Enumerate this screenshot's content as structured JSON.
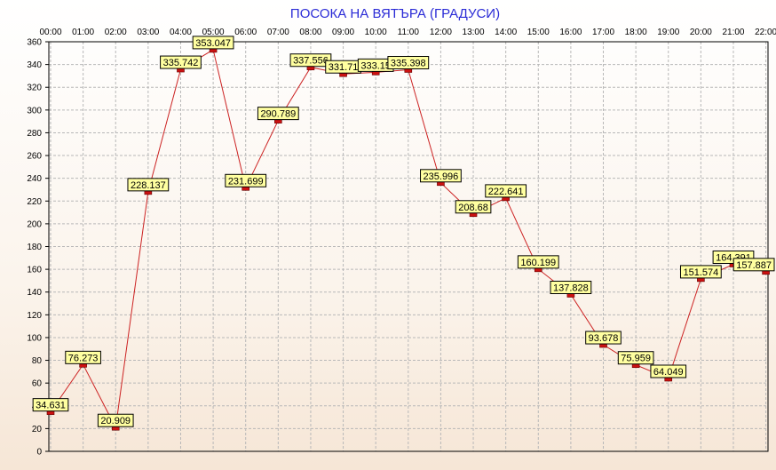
{
  "chart_data": {
    "type": "line",
    "title": "ПОСОКА НА ВЯТЪРА    (ГРАДУСИ)",
    "xlabel": "",
    "ylabel": "",
    "x": [
      "00:00",
      "01:00",
      "02:00",
      "03:00",
      "04:00",
      "05:00",
      "06:00",
      "07:00",
      "08:00",
      "09:00",
      "10:00",
      "11:00",
      "12:00",
      "13:00",
      "14:00",
      "15:00",
      "16:00",
      "17:00",
      "18:00",
      "19:00",
      "20:00",
      "21:00",
      "22:00"
    ],
    "y_ticks": [
      "0",
      "20",
      "40",
      "60",
      "80",
      "100",
      "120",
      "140",
      "160",
      "180",
      "200",
      "220",
      "240",
      "260",
      "280",
      "300",
      "320",
      "340",
      "360"
    ],
    "ylim": [
      0,
      360
    ],
    "grid": true,
    "series": [
      {
        "name": "",
        "values": [
          34.631,
          76.273,
          20.909,
          228.137,
          335.742,
          353.047,
          231.699,
          290.789,
          337.556,
          331.71,
          333.15,
          335.398,
          235.996,
          208.68,
          222.641,
          160.199,
          137.828,
          93.678,
          75.959,
          64.049,
          151.574,
          164.391,
          157.887
        ],
        "data_labels": [
          "34.631",
          "76.273",
          "20.909",
          "228.137",
          "335.742",
          "353.047",
          "231.699",
          "290.789",
          "337.556",
          "331.71",
          "333.15",
          "335.398",
          "235.996",
          "208.68",
          "222.641",
          "160.199",
          "137.828",
          "93.678",
          "75.959",
          "64.049",
          "151.574",
          "164.391",
          "157.887"
        ]
      }
    ],
    "colors": {
      "line": "#cc2222",
      "marker": "#cc1111",
      "label_bg": "#ffffa0",
      "title": "#2b2bd6",
      "grid": "#b8b8b8"
    }
  }
}
